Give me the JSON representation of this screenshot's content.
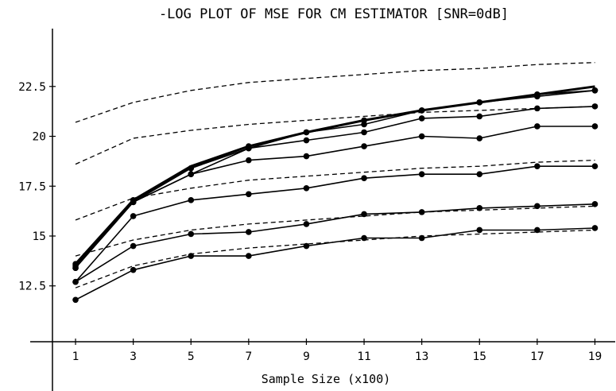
{
  "chart_data": {
    "type": "line",
    "title": "-LOG PLOT OF MSE FOR CM ESTIMATOR [SNR=0dB]",
    "xlabel": "Sample Size (x100)",
    "ylabel": "",
    "x": [
      1,
      3,
      5,
      7,
      9,
      11,
      13,
      15,
      17,
      19
    ],
    "x_ticks": [
      "1",
      "3",
      "5",
      "7",
      "9",
      "11",
      "13",
      "15",
      "17",
      "19"
    ],
    "y_ticks": [
      "12.5",
      "15",
      "17.5",
      "20",
      "22.5"
    ],
    "y_tick_values": [
      12.5,
      15,
      17.5,
      20,
      22.5
    ],
    "xlim": [
      0.2,
      19.4
    ],
    "ylim": [
      9.7,
      25.4
    ],
    "grid": false,
    "series": [
      {
        "values": [
          13.6,
          16.8,
          18.5,
          19.5,
          20.2,
          20.8,
          21.3,
          21.7,
          22.1,
          22.5
        ],
        "style": "solid-thick",
        "markers": false
      },
      {
        "values": [
          13.6,
          16.8,
          18.4,
          19.5,
          20.2,
          20.8,
          21.3,
          21.7,
          22.1,
          22.3
        ],
        "style": "solid",
        "markers": true
      },
      {
        "values": [
          13.5,
          16.7,
          18.4,
          19.4,
          20.2,
          20.6,
          21.3,
          21.7,
          22.0,
          22.3
        ],
        "style": "solid",
        "markers": true
      },
      {
        "values": [
          13.4,
          16.7,
          18.1,
          19.4,
          19.8,
          20.2,
          20.9,
          21.0,
          21.4,
          21.5
        ],
        "style": "solid",
        "markers": true
      },
      {
        "values": [
          13.4,
          16.7,
          18.1,
          18.8,
          19.0,
          19.5,
          20.0,
          19.9,
          20.5,
          20.5
        ],
        "style": "solid",
        "markers": true
      },
      {
        "values": [
          12.7,
          16.0,
          16.8,
          17.1,
          17.4,
          17.9,
          18.1,
          18.1,
          18.5,
          18.5
        ],
        "style": "solid",
        "markers": true
      },
      {
        "values": [
          12.7,
          14.5,
          15.1,
          15.2,
          15.6,
          16.1,
          16.2,
          16.4,
          16.5,
          16.6
        ],
        "style": "solid",
        "markers": true
      },
      {
        "values": [
          11.8,
          13.3,
          14.0,
          14.0,
          14.5,
          14.9,
          14.9,
          15.3,
          15.3,
          15.4
        ],
        "style": "solid",
        "markers": true
      },
      {
        "values": [
          20.7,
          21.7,
          22.3,
          22.7,
          22.9,
          23.1,
          23.3,
          23.4,
          23.6,
          23.7
        ],
        "style": "dashed",
        "markers": false
      },
      {
        "values": [
          18.6,
          19.9,
          20.3,
          20.6,
          20.8,
          21.0,
          21.2,
          21.3,
          21.4,
          21.5
        ],
        "style": "dashed",
        "markers": false
      },
      {
        "values": [
          15.8,
          16.9,
          17.4,
          17.8,
          18.0,
          18.2,
          18.4,
          18.5,
          18.7,
          18.8
        ],
        "style": "dashed",
        "markers": false
      },
      {
        "values": [
          14.0,
          14.8,
          15.3,
          15.6,
          15.8,
          16.0,
          16.2,
          16.3,
          16.4,
          16.5
        ],
        "style": "dashed",
        "markers": false
      },
      {
        "values": [
          12.4,
          13.5,
          14.1,
          14.4,
          14.6,
          14.8,
          15.0,
          15.1,
          15.2,
          15.3
        ],
        "style": "dashed",
        "markers": false
      }
    ]
  }
}
